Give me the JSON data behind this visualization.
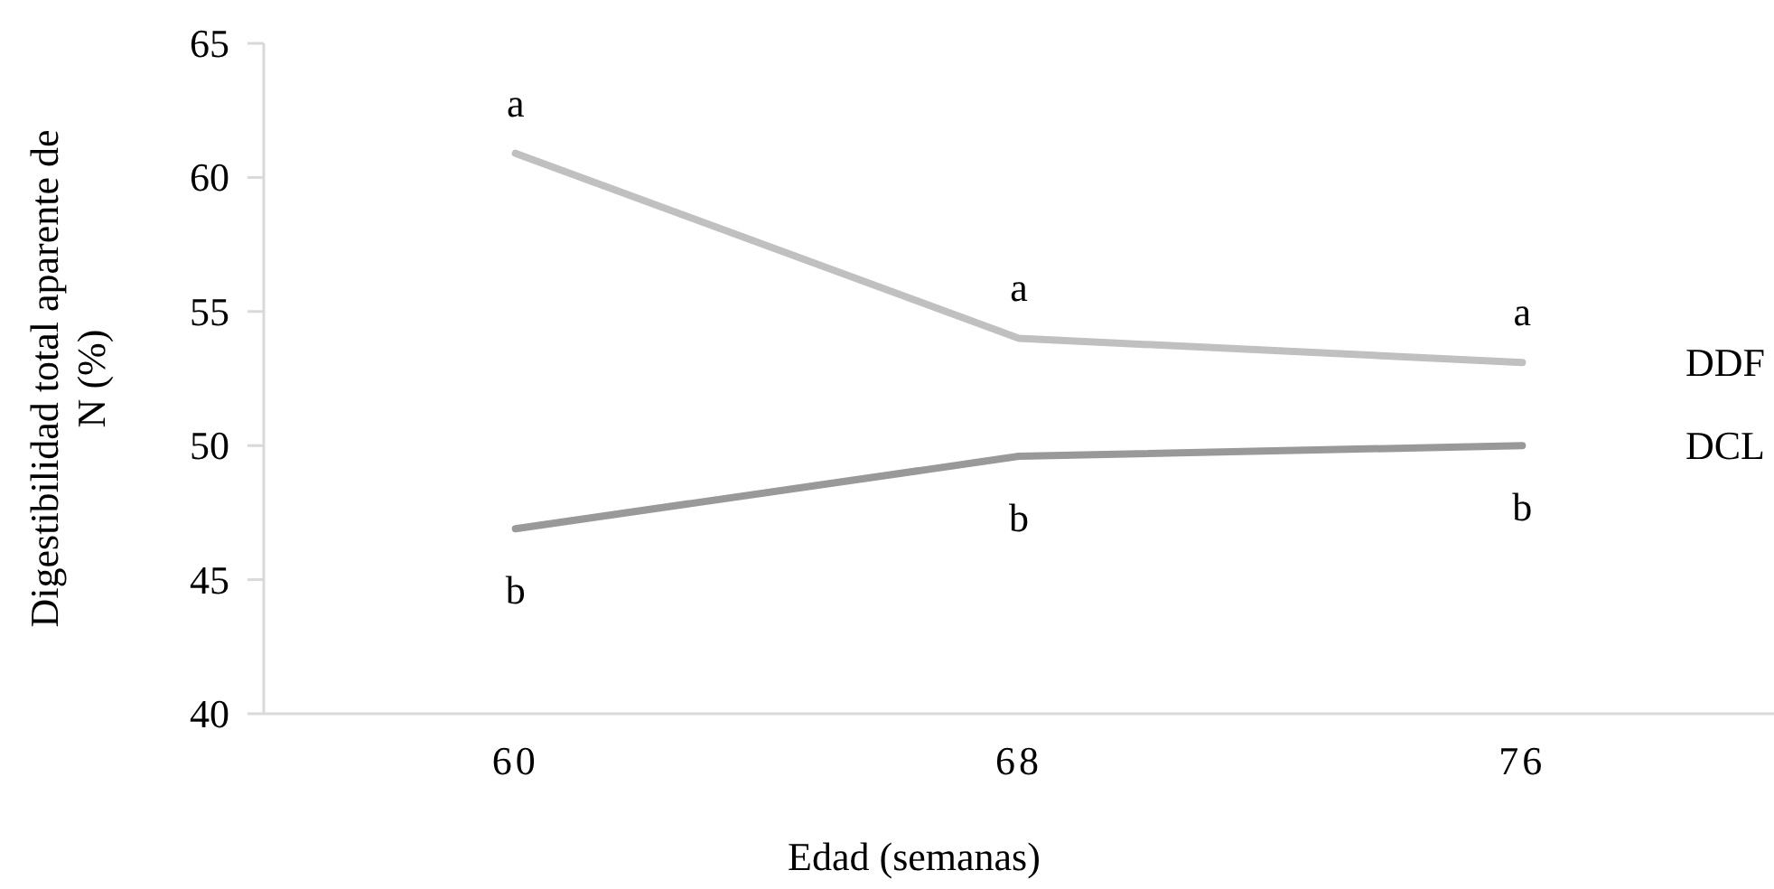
{
  "chart_data": {
    "type": "line",
    "xlabel": "Edad (semanas)",
    "ylabel": "Digestibilidad total aparente de\nN (%)",
    "categories": [
      "60",
      "68",
      "76"
    ],
    "series": [
      {
        "name": "DDF",
        "color": "#c0c0c0",
        "values": [
          60.9,
          54.0,
          53.1
        ]
      },
      {
        "name": "DCL",
        "color": "#999999",
        "values": [
          46.9,
          49.6,
          50.0
        ]
      }
    ],
    "ylim": [
      40,
      65
    ],
    "yticks": [
      40,
      45,
      50,
      55,
      60,
      65
    ],
    "grid": false,
    "marker": "none",
    "line_style": "solid",
    "annotations": [
      {
        "text": "a",
        "x": "60",
        "y": 60.9
      },
      {
        "text": "a",
        "x": "68",
        "y": 54.0
      },
      {
        "text": "a",
        "x": "76",
        "y": 53.1
      },
      {
        "text": "b",
        "x": "60",
        "y": 46.9
      },
      {
        "text": "b",
        "x": "68",
        "y": 49.6
      },
      {
        "text": "b",
        "x": "76",
        "y": 50.0
      }
    ]
  }
}
